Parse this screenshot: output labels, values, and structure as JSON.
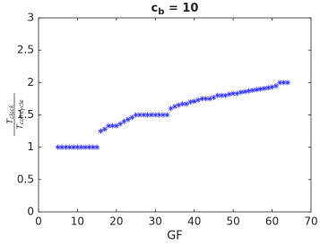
{
  "chart_data": {
    "type": "scatter",
    "title": {
      "base": "c",
      "sub": "b",
      "rest": " = 10"
    },
    "xlabel": "GF",
    "ylabel": {
      "numerator_base": "T",
      "numerator_sub": "clock",
      "denominator_base": "T",
      "denominator_sub": "coll cycle"
    },
    "xlim": [
      0,
      70
    ],
    "xticks": [
      0,
      10,
      20,
      30,
      40,
      50,
      60,
      70
    ],
    "ylim": [
      0,
      3
    ],
    "yticks": [
      0,
      0.5,
      1,
      1.5,
      2,
      2.5,
      3
    ],
    "color": "#3333ff",
    "x": [
      5,
      6,
      7,
      8,
      9,
      10,
      11,
      12,
      13,
      14,
      15,
      16,
      17,
      18,
      19,
      20,
      21,
      22,
      23,
      24,
      25,
      26,
      27,
      28,
      29,
      30,
      31,
      32,
      33,
      34,
      35,
      36,
      37,
      38,
      39,
      40,
      41,
      42,
      43,
      44,
      45,
      46,
      47,
      48,
      49,
      50,
      51,
      52,
      53,
      54,
      55,
      56,
      57,
      58,
      59,
      60,
      61,
      62,
      63,
      64
    ],
    "values": [
      1,
      1,
      1,
      1,
      1,
      1,
      1,
      1,
      1,
      1,
      1,
      1.25,
      1.28,
      1.33,
      1.33,
      1.33,
      1.36,
      1.4,
      1.43,
      1.46,
      1.5,
      1.5,
      1.5,
      1.5,
      1.5,
      1.5,
      1.5,
      1.5,
      1.5,
      1.6,
      1.63,
      1.65,
      1.67,
      1.67,
      1.7,
      1.71,
      1.73,
      1.75,
      1.75,
      1.75,
      1.77,
      1.8,
      1.8,
      1.8,
      1.82,
      1.83,
      1.83,
      1.85,
      1.86,
      1.87,
      1.88,
      1.89,
      1.9,
      1.91,
      1.92,
      1.93,
      1.95,
      2,
      2,
      2
    ]
  }
}
